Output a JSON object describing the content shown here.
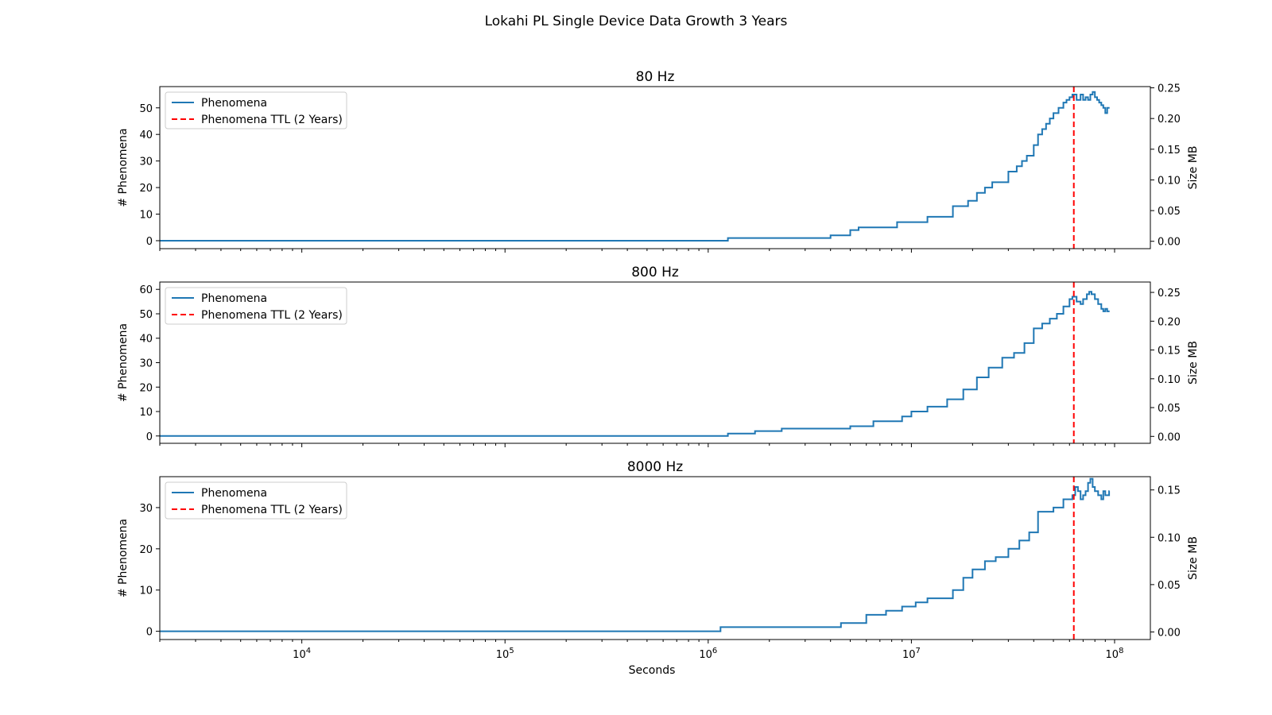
{
  "figure_title": "Lokahi PL Single Device Data Growth 3 Years",
  "shared_xlabel": "Seconds",
  "colors": {
    "series": "#1f77b4",
    "ttl": "#ff0000",
    "axes": "#000000"
  },
  "chart_data": [
    {
      "type": "line",
      "title": "80 Hz",
      "ylabel": "# Phenomena",
      "y2label": "Size MB",
      "xscale": "log",
      "xlim": [
        2000,
        150000000
      ],
      "ylim": [
        -3,
        58
      ],
      "y2lim": [
        -0.012,
        0.252
      ],
      "yticks": [
        0,
        10,
        20,
        30,
        40,
        50
      ],
      "y2ticks": [
        "0.00",
        "0.05",
        "0.10",
        "0.15",
        "0.20",
        "0.25"
      ],
      "y2tick_values": [
        0,
        0.05,
        0.1,
        0.15,
        0.2,
        0.25
      ],
      "legend": {
        "position": "upper-left",
        "entries": [
          "Phenomena",
          "Phenomena TTL (2 Years)"
        ]
      },
      "ttl_x": 63000000,
      "series": [
        {
          "name": "Phenomena",
          "style": "step",
          "x": [
            2000,
            1250000,
            4000000,
            5000000,
            5500000,
            8500000,
            12000000,
            16000000,
            19000000,
            21000000,
            23000000,
            25000000,
            30000000,
            33000000,
            35000000,
            37000000,
            40000000,
            42000000,
            44000000,
            46000000,
            48000000,
            50000000,
            53000000,
            56000000,
            58000000,
            60000000,
            62000000,
            65000000,
            68000000,
            70000000,
            72000000,
            74000000,
            76000000,
            78000000,
            80000000,
            82000000,
            84000000,
            86000000,
            88000000,
            90000000,
            92000000,
            94000000
          ],
          "values": [
            0,
            1,
            2,
            4,
            5,
            7,
            9,
            13,
            15,
            18,
            20,
            22,
            26,
            28,
            30,
            32,
            36,
            40,
            42,
            44,
            46,
            48,
            50,
            52,
            53,
            54,
            55,
            53,
            55,
            53,
            54,
            53,
            55,
            56,
            54,
            53,
            52,
            51,
            50,
            48,
            50,
            50
          ]
        }
      ]
    },
    {
      "type": "line",
      "title": "800 Hz",
      "ylabel": "# Phenomena",
      "y2label": "Size MB",
      "xscale": "log",
      "xlim": [
        2000,
        150000000
      ],
      "ylim": [
        -3,
        63
      ],
      "y2lim": [
        -0.012,
        0.268
      ],
      "yticks": [
        0,
        10,
        20,
        30,
        40,
        50,
        60
      ],
      "y2ticks": [
        "0.00",
        "0.05",
        "0.10",
        "0.15",
        "0.20",
        "0.25"
      ],
      "y2tick_values": [
        0,
        0.05,
        0.1,
        0.15,
        0.2,
        0.25
      ],
      "legend": {
        "position": "upper-left",
        "entries": [
          "Phenomena",
          "Phenomena TTL (2 Years)"
        ]
      },
      "ttl_x": 63000000,
      "series": [
        {
          "name": "Phenomena",
          "style": "step",
          "x": [
            2000,
            1250000,
            1700000,
            2300000,
            5000000,
            6500000,
            9000000,
            10000000,
            12000000,
            15000000,
            18000000,
            21000000,
            24000000,
            28000000,
            32000000,
            36000000,
            40000000,
            44000000,
            48000000,
            52000000,
            56000000,
            60000000,
            62000000,
            65000000,
            68000000,
            70000000,
            73000000,
            75000000,
            77000000,
            80000000,
            83000000,
            86000000,
            88000000,
            90000000,
            92000000,
            94000000
          ],
          "values": [
            0,
            1,
            2,
            3,
            4,
            6,
            8,
            10,
            12,
            15,
            19,
            24,
            28,
            32,
            34,
            38,
            44,
            46,
            48,
            50,
            53,
            56,
            57,
            55,
            54,
            56,
            58,
            59,
            58,
            56,
            54,
            52,
            51,
            52,
            51,
            51
          ]
        }
      ]
    },
    {
      "type": "line",
      "title": "8000 Hz",
      "ylabel": "# Phenomena",
      "y2label": "Size MB",
      "xscale": "log",
      "xlim": [
        2000,
        150000000
      ],
      "ylim": [
        -2,
        37.5
      ],
      "y2lim": [
        -0.008,
        0.164
      ],
      "yticks": [
        0,
        10,
        20,
        30
      ],
      "y2ticks": [
        "0.00",
        "0.05",
        "0.10",
        "0.15"
      ],
      "y2tick_values": [
        0,
        0.05,
        0.1,
        0.15
      ],
      "legend": {
        "position": "upper-left",
        "entries": [
          "Phenomena",
          "Phenomena TTL (2 Years)"
        ]
      },
      "ttl_x": 63000000,
      "series": [
        {
          "name": "Phenomena",
          "style": "step",
          "x": [
            2000,
            1150000,
            4500000,
            6000000,
            7500000,
            9000000,
            10500000,
            12000000,
            16000000,
            18000000,
            20000000,
            23000000,
            26000000,
            30000000,
            34000000,
            38000000,
            42000000,
            45000000,
            50000000,
            56000000,
            60000000,
            62000000,
            64000000,
            66000000,
            68000000,
            70000000,
            72000000,
            74000000,
            76000000,
            78000000,
            80000000,
            83000000,
            86000000,
            88000000,
            90000000,
            92000000,
            94000000
          ],
          "values": [
            0,
            1,
            2,
            4,
            5,
            6,
            7,
            8,
            10,
            13,
            15,
            17,
            18,
            20,
            22,
            24,
            29,
            29,
            30,
            32,
            32,
            33,
            35,
            34,
            32,
            33,
            34,
            36,
            37,
            35,
            34,
            33,
            32,
            34,
            33,
            33,
            34
          ]
        }
      ]
    }
  ]
}
